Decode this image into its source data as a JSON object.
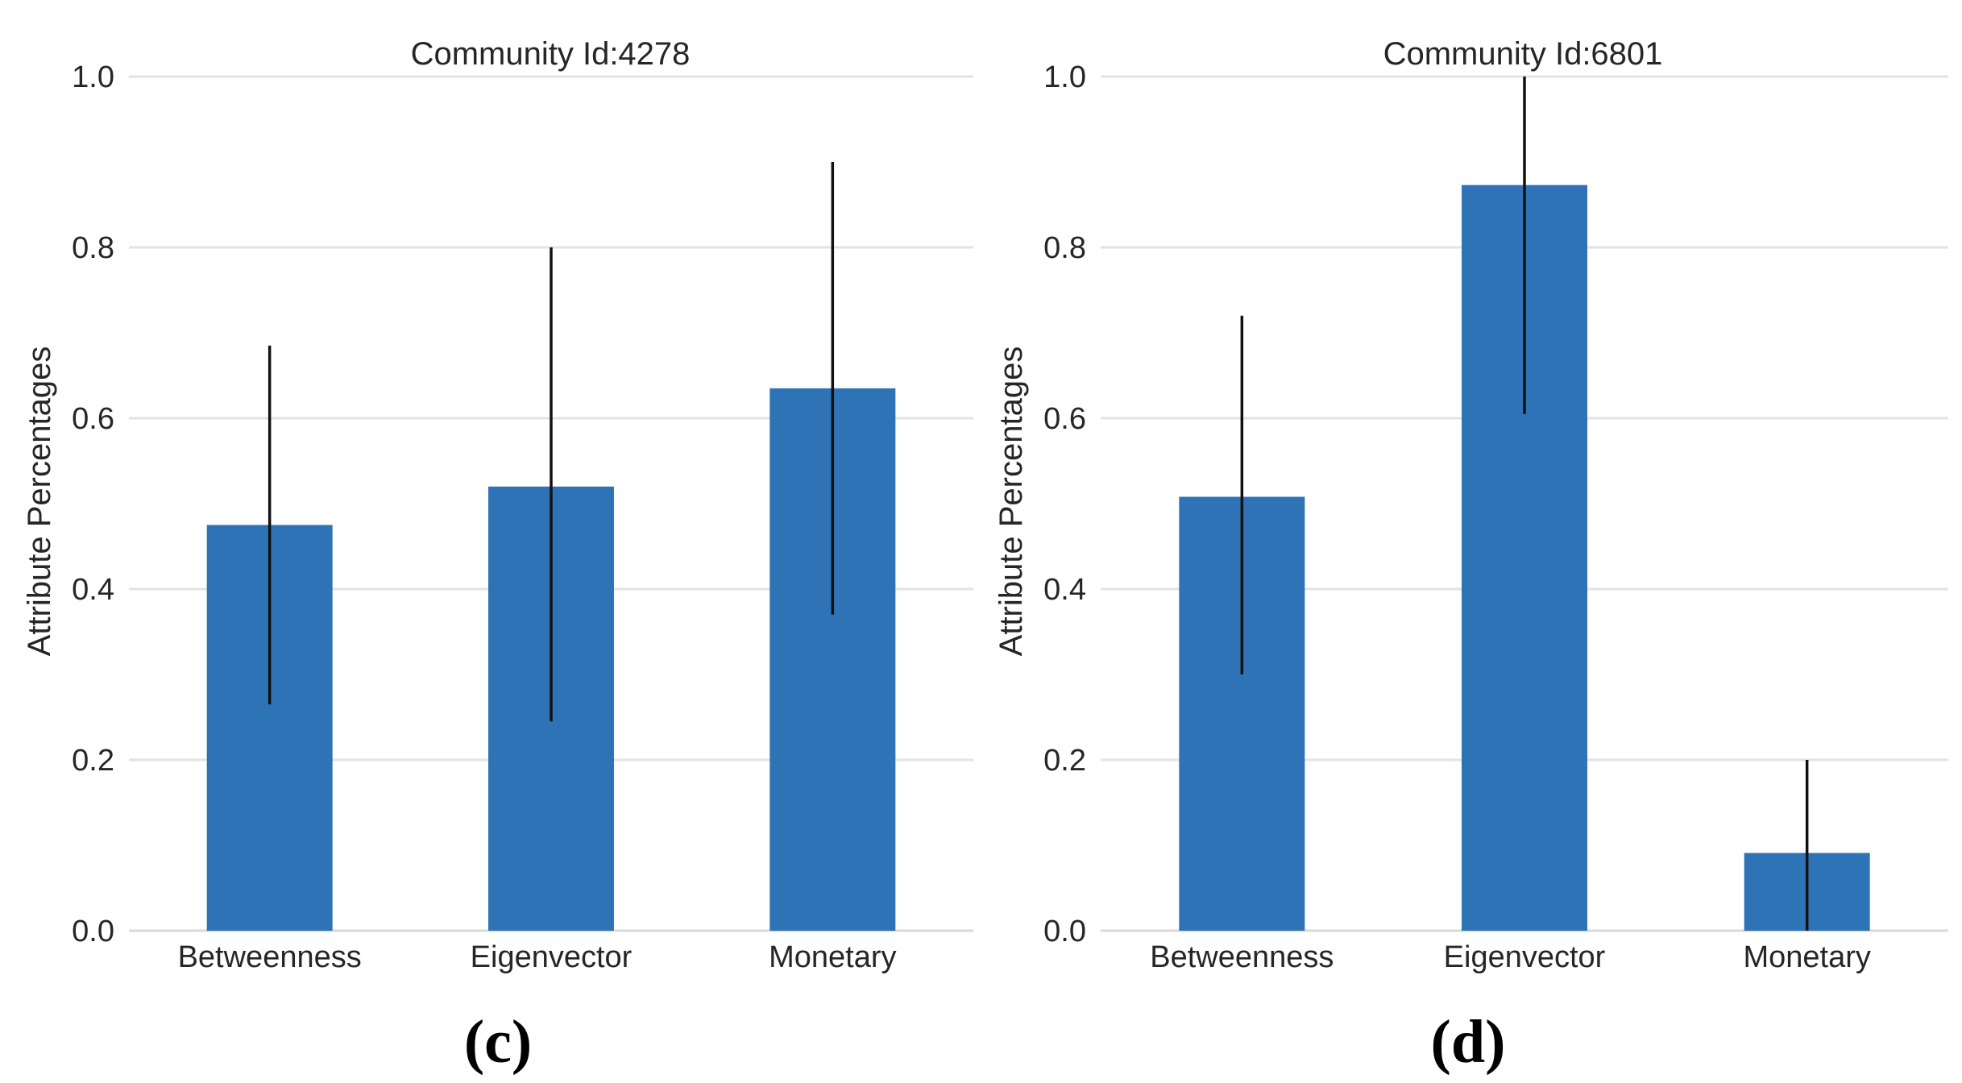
{
  "chart_data": [
    {
      "type": "bar",
      "title": "Community Id:4278",
      "panel_label": "(c)",
      "xlabel": "",
      "ylabel": "Attribute Percentages",
      "categories": [
        "Betweenness",
        "Eigenvector",
        "Monetary"
      ],
      "values": [
        0.475,
        0.52,
        0.635
      ],
      "error_low": [
        0.265,
        0.245,
        0.37
      ],
      "error_high": [
        0.685,
        0.8,
        0.9
      ],
      "ylim": [
        0,
        1.0
      ],
      "yticks": [
        "0.0",
        "0.2",
        "0.4",
        "0.6",
        "0.8",
        "1.0"
      ],
      "grid": true,
      "bar_color": "#2e73b5"
    },
    {
      "type": "bar",
      "title": "Community Id:6801",
      "panel_label": "(d)",
      "xlabel": "",
      "ylabel": "Attribute Percentages",
      "categories": [
        "Betweenness",
        "Eigenvector",
        "Monetary"
      ],
      "values": [
        0.508,
        0.873,
        0.091
      ],
      "error_low": [
        0.3,
        0.605,
        0.0
      ],
      "error_high": [
        0.72,
        1.0,
        0.2
      ],
      "ylim": [
        0,
        1.0
      ],
      "yticks": [
        "0.0",
        "0.2",
        "0.4",
        "0.6",
        "0.8",
        "1.0"
      ],
      "grid": true,
      "bar_color": "#2e73b5"
    }
  ]
}
